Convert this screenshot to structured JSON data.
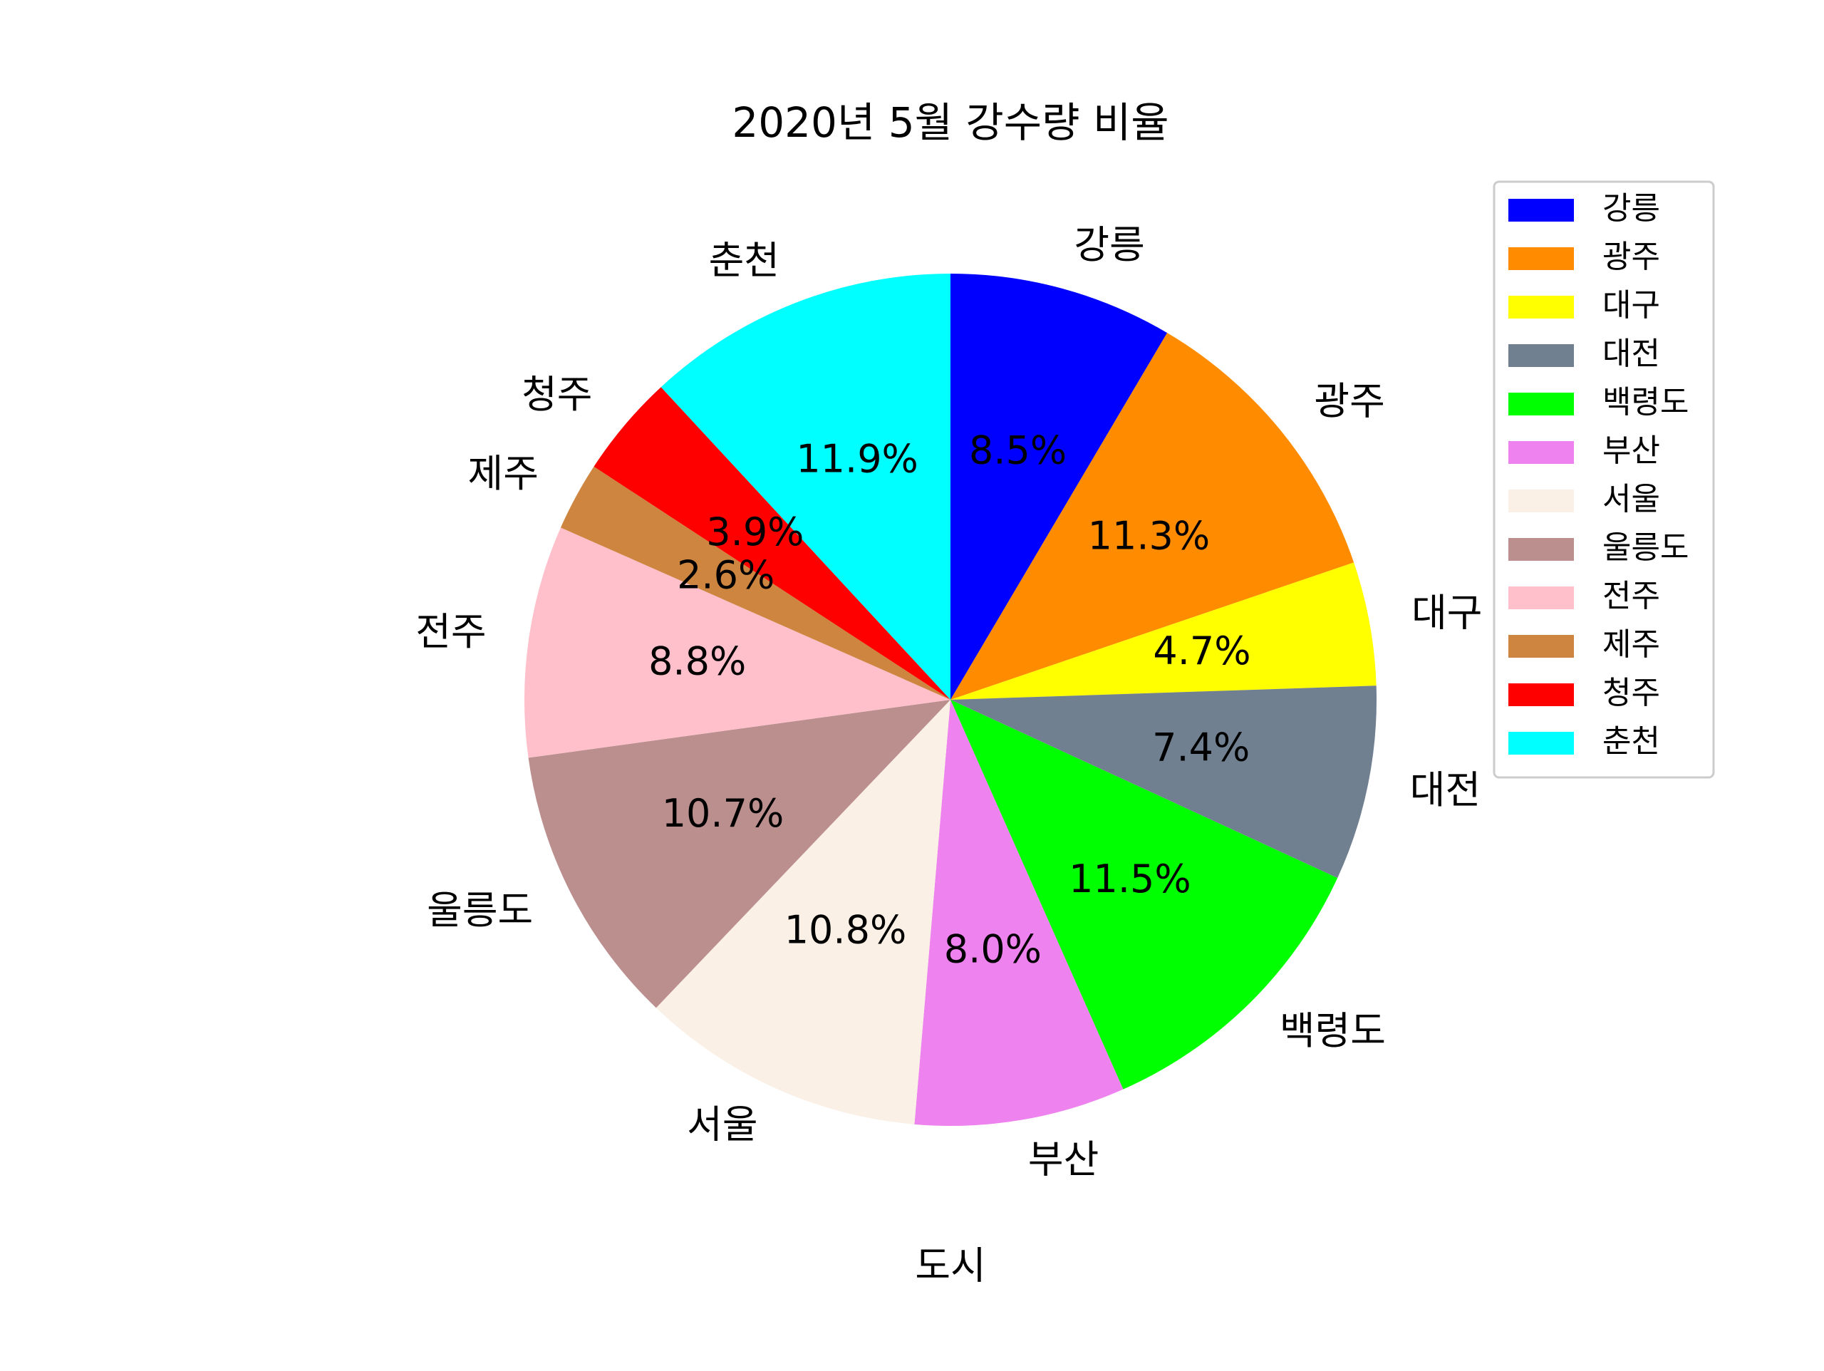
{
  "chart_data": {
    "type": "pie",
    "title": "2020년 5월 강수량 비율",
    "xlabel": "도시",
    "start_angle_deg": 90,
    "direction": "clockwise",
    "autopct_format": "%.1f%%",
    "legend_position": "upper right",
    "slices": [
      {
        "label": "강릉",
        "value": 8.5,
        "pct_label": "8.5%",
        "color": "#0000ff"
      },
      {
        "label": "광주",
        "value": 11.3,
        "pct_label": "11.3%",
        "color": "#ff8c00"
      },
      {
        "label": "대구",
        "value": 4.7,
        "pct_label": "4.7%",
        "color": "#ffff00"
      },
      {
        "label": "대전",
        "value": 7.4,
        "pct_label": "7.4%",
        "color": "#708090"
      },
      {
        "label": "백령도",
        "value": 11.5,
        "pct_label": "11.5%",
        "color": "#00ff00"
      },
      {
        "label": "부산",
        "value": 8.0,
        "pct_label": "8.0%",
        "color": "#ee82ee"
      },
      {
        "label": "서울",
        "value": 10.8,
        "pct_label": "10.8%",
        "color": "#faf0e6"
      },
      {
        "label": "울릉도",
        "value": 10.7,
        "pct_label": "10.7%",
        "color": "#bc8f8f"
      },
      {
        "label": "전주",
        "value": 8.8,
        "pct_label": "8.8%",
        "color": "#ffc0cb"
      },
      {
        "label": "제주",
        "value": 2.6,
        "pct_label": "2.6%",
        "color": "#cd853f"
      },
      {
        "label": "청주",
        "value": 3.9,
        "pct_label": "3.9%",
        "color": "#ff0000"
      },
      {
        "label": "춘천",
        "value": 11.9,
        "pct_label": "11.9%",
        "color": "#00ffff"
      }
    ]
  }
}
